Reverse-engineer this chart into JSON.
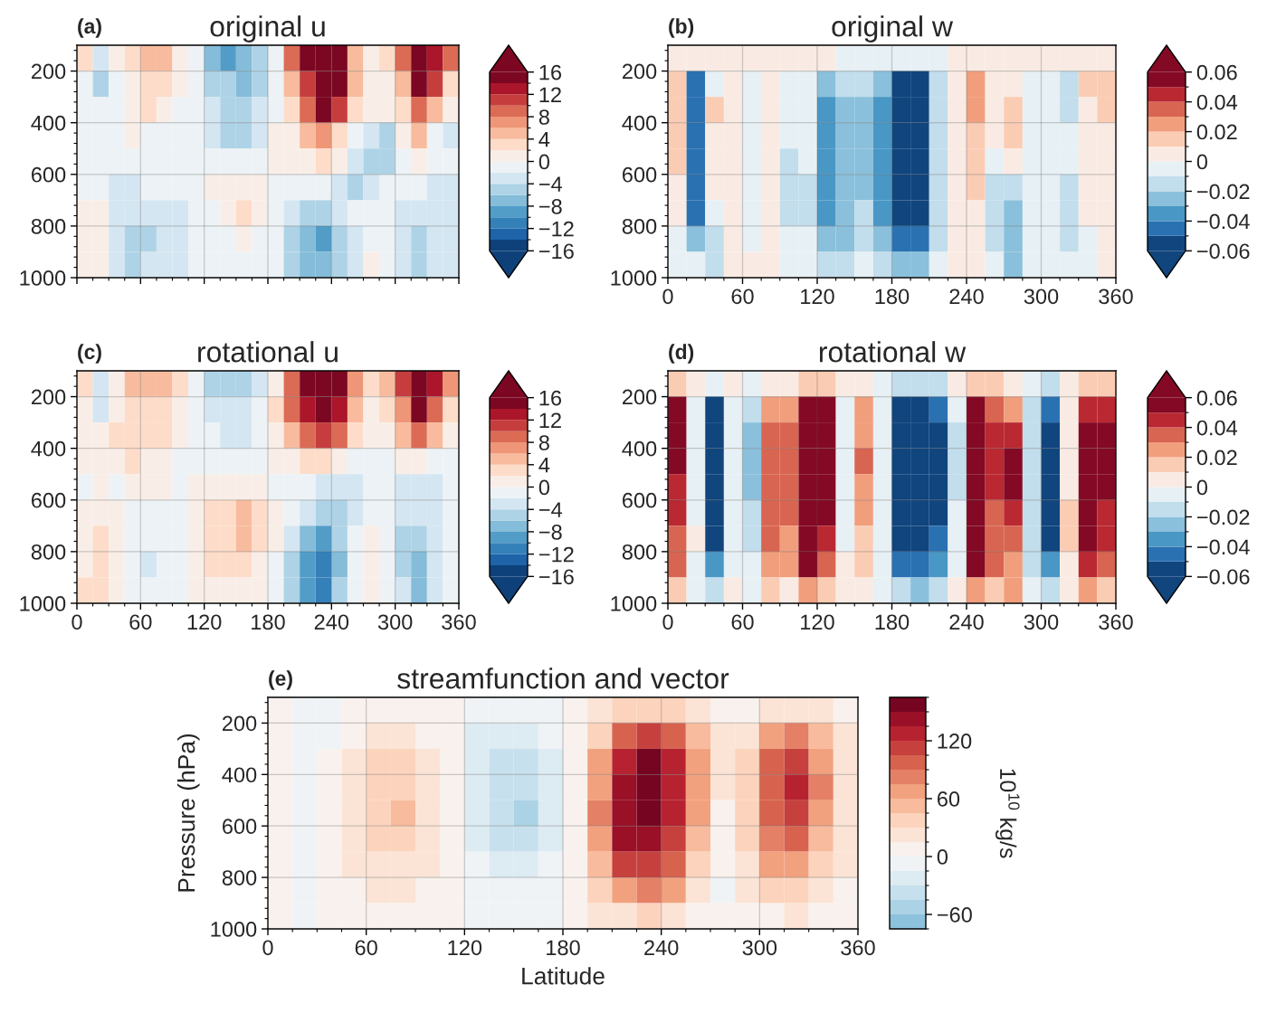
{
  "chart_data": [
    {
      "type": "heatmap",
      "title": "original u",
      "annotations": [
        "(a)"
      ],
      "tick_labels": "y",
      "grid": true,
      "x": [
        7.5,
        22.5,
        37.5,
        52.5,
        67.5,
        82.5,
        97.5,
        112.5,
        127.5,
        142.5,
        157.5,
        172.5,
        187.5,
        202.5,
        217.5,
        232.5,
        247.5,
        262.5,
        277.5,
        292.5,
        307.5,
        322.5,
        337.5,
        352.5
      ],
      "xlim": [
        0,
        360
      ],
      "ylim": [
        1000,
        100
      ],
      "xticks": [
        0,
        {
          "value": 15,
          "label": null
        },
        {
          "value": 30,
          "label": null
        },
        {
          "value": 45,
          "label": null
        },
        60,
        {
          "value": 75,
          "label": null
        },
        {
          "value": 90,
          "label": null
        },
        {
          "value": 105,
          "label": null
        },
        120,
        {
          "value": 135,
          "label": null
        },
        {
          "value": 150,
          "label": null
        },
        {
          "value": 165,
          "label": null
        },
        180,
        {
          "value": 195,
          "label": null
        },
        {
          "value": 210,
          "label": null
        },
        {
          "value": 225,
          "label": null
        },
        240,
        {
          "value": 255,
          "label": null
        },
        {
          "value": 270,
          "label": null
        },
        {
          "value": 285,
          "label": null
        },
        300,
        {
          "value": 315,
          "label": null
        },
        {
          "value": 330,
          "label": null
        },
        {
          "value": 345,
          "label": null
        },
        360
      ],
      "yticks": [
        {
          "value": 120,
          "label": null
        },
        {
          "value": 160,
          "label": null
        },
        200,
        {
          "value": 240,
          "label": null
        },
        {
          "value": 280,
          "label": null
        },
        {
          "value": 320,
          "label": null
        },
        {
          "value": 360,
          "label": null
        },
        400,
        {
          "value": 440,
          "label": null
        },
        {
          "value": 480,
          "label": null
        },
        {
          "value": 520,
          "label": null
        },
        {
          "value": 560,
          "label": null
        },
        600,
        {
          "value": 640,
          "label": null
        },
        {
          "value": 680,
          "label": null
        },
        {
          "value": 720,
          "label": null
        },
        {
          "value": 760,
          "label": null
        },
        800,
        {
          "value": 840,
          "label": null
        },
        {
          "value": 880,
          "label": null
        },
        {
          "value": 920,
          "label": null
        },
        {
          "value": 960,
          "label": null
        },
        1000
      ],
      "clim": [
        -16,
        16
      ],
      "cticks": [
        16,
        {
          "value": 14,
          "label": null
        },
        12,
        {
          "value": 10,
          "label": null
        },
        8,
        {
          "value": 6,
          "label": null
        },
        4,
        {
          "value": 2,
          "label": null
        },
        0,
        {
          "value": -2,
          "label": null
        },
        {
          "value": -4,
          "label": "−4"
        },
        {
          "value": -6,
          "label": null
        },
        {
          "value": -8,
          "label": "−8"
        },
        {
          "value": -10,
          "label": null
        },
        {
          "value": -12,
          "label": "−12"
        },
        {
          "value": -14,
          "label": null
        },
        {
          "value": -16,
          "label": "−16"
        }
      ],
      "cells": [
        [
          2,
          -3,
          0,
          2,
          5,
          4,
          1,
          -2,
          -8,
          -9,
          -8,
          -6,
          -2,
          8,
          14,
          16,
          14,
          4,
          1,
          3,
          9,
          16,
          13,
          8
        ],
        [
          -1,
          -6,
          -2,
          0,
          2,
          2,
          0,
          -1,
          -5,
          -6,
          -7,
          -5,
          -1,
          4,
          11,
          16,
          14,
          5,
          1,
          1,
          5,
          14,
          10,
          3
        ],
        [
          -1,
          -2,
          -1,
          1,
          2,
          1,
          -1,
          -2,
          -4,
          -6,
          -6,
          -4,
          -1,
          3,
          8,
          14,
          10,
          3,
          0,
          0,
          3,
          8,
          5,
          0
        ],
        [
          -1,
          -2,
          -1,
          0,
          -1,
          -1,
          -2,
          -2,
          -3,
          -5,
          -5,
          -3,
          0,
          1,
          4,
          6,
          3,
          -2,
          -4,
          -5,
          1,
          4,
          -2,
          -3
        ],
        [
          -2,
          -2,
          -2,
          -1,
          -2,
          -2,
          -2,
          -1,
          -1,
          -2,
          -2,
          -1,
          0,
          0,
          1,
          2,
          0,
          -3,
          -5,
          -5,
          -2,
          0,
          -2,
          -2
        ],
        [
          -1,
          -1,
          -3,
          -3,
          -2,
          -2,
          -2,
          -1,
          0,
          0,
          1,
          1,
          -1,
          -2,
          -2,
          -1,
          -3,
          -5,
          -4,
          -2,
          -2,
          -2,
          -3,
          -3
        ],
        [
          0,
          0,
          -4,
          -4,
          -3,
          -3,
          -3,
          -2,
          -1,
          0,
          2,
          0,
          -2,
          -3,
          -5,
          -5,
          -4,
          -2,
          -1,
          -2,
          -4,
          -4,
          -3,
          -3
        ],
        [
          0,
          1,
          -4,
          -5,
          -5,
          -4,
          -3,
          -2,
          -1,
          -1,
          0,
          -1,
          -2,
          -5,
          -8,
          -9,
          -6,
          -3,
          -1,
          -2,
          -4,
          -5,
          -4,
          -3
        ],
        [
          0,
          1,
          -3,
          -5,
          -4,
          -4,
          -3,
          -2,
          -1,
          -1,
          -1,
          -1,
          -2,
          -5,
          -8,
          -8,
          -5,
          -3,
          0,
          -2,
          -4,
          -5,
          -4,
          -3
        ]
      ]
    },
    {
      "type": "heatmap",
      "title": "original w",
      "annotations": [
        "(b)"
      ],
      "grid": true,
      "x": [
        7.5,
        22.5,
        37.5,
        52.5,
        67.5,
        82.5,
        97.5,
        112.5,
        127.5,
        142.5,
        157.5,
        172.5,
        187.5,
        202.5,
        217.5,
        232.5,
        247.5,
        262.5,
        277.5,
        292.5,
        307.5,
        322.5,
        337.5,
        352.5
      ],
      "xlim": [
        0,
        360
      ],
      "ylim": [
        1000,
        100
      ],
      "xticks": [
        0,
        {
          "value": 15,
          "label": null
        },
        {
          "value": 30,
          "label": null
        },
        {
          "value": 45,
          "label": null
        },
        60,
        {
          "value": 75,
          "label": null
        },
        {
          "value": 90,
          "label": null
        },
        {
          "value": 105,
          "label": null
        },
        120,
        {
          "value": 135,
          "label": null
        },
        {
          "value": 150,
          "label": null
        },
        {
          "value": 165,
          "label": null
        },
        180,
        {
          "value": 195,
          "label": null
        },
        {
          "value": 210,
          "label": null
        },
        {
          "value": 225,
          "label": null
        },
        240,
        {
          "value": 255,
          "label": null
        },
        {
          "value": 270,
          "label": null
        },
        {
          "value": 285,
          "label": null
        },
        300,
        {
          "value": 315,
          "label": null
        },
        {
          "value": 330,
          "label": null
        },
        {
          "value": 345,
          "label": null
        },
        360
      ],
      "yticks": [
        {
          "value": 120,
          "label": null
        },
        {
          "value": 160,
          "label": null
        },
        200,
        {
          "value": 240,
          "label": null
        },
        {
          "value": 280,
          "label": null
        },
        {
          "value": 320,
          "label": null
        },
        {
          "value": 360,
          "label": null
        },
        400,
        {
          "value": 440,
          "label": null
        },
        {
          "value": 480,
          "label": null
        },
        {
          "value": 520,
          "label": null
        },
        {
          "value": 560,
          "label": null
        },
        600,
        {
          "value": 640,
          "label": null
        },
        {
          "value": 680,
          "label": null
        },
        {
          "value": 720,
          "label": null
        },
        {
          "value": 760,
          "label": null
        },
        800,
        {
          "value": 840,
          "label": null
        },
        {
          "value": 880,
          "label": null
        },
        {
          "value": 920,
          "label": null
        },
        {
          "value": 960,
          "label": null
        },
        1000
      ],
      "clim": [
        -0.06,
        0.06
      ],
      "cticks": [
        0.06,
        {
          "value": 0.05,
          "label": null
        },
        0.04,
        {
          "value": 0.03,
          "label": null
        },
        0.02,
        {
          "value": 0.01,
          "label": null
        },
        0,
        {
          "value": -0.01,
          "label": null
        },
        {
          "value": -0.02,
          "label": "−0.02"
        },
        {
          "value": -0.03,
          "label": null
        },
        {
          "value": -0.04,
          "label": "−0.04"
        },
        {
          "value": -0.05,
          "label": null
        },
        {
          "value": -0.06,
          "label": "−0.06"
        }
      ],
      "cells": [
        [
          0.005,
          0,
          0,
          0,
          0,
          0,
          0,
          0,
          0,
          -0.005,
          -0.005,
          -0.01,
          -0.01,
          -0.01,
          -0.005,
          0,
          0.005,
          0,
          0,
          0,
          0,
          0,
          0,
          0
        ],
        [
          0.01,
          -0.05,
          -0.005,
          0.005,
          -0.005,
          0,
          -0.005,
          -0.005,
          -0.03,
          -0.02,
          -0.02,
          -0.03,
          -0.06,
          -0.06,
          -0.02,
          0.005,
          0.02,
          0,
          0.005,
          -0.005,
          -0.01,
          -0.015,
          0.01,
          0.01
        ],
        [
          0.015,
          -0.05,
          0.01,
          0.005,
          -0.01,
          0.005,
          -0.01,
          -0.01,
          -0.035,
          -0.025,
          -0.025,
          -0.035,
          -0.06,
          -0.06,
          -0.02,
          0.005,
          0.02,
          0,
          0.015,
          -0.005,
          -0.005,
          -0.015,
          0.005,
          0.01
        ],
        [
          0.015,
          -0.05,
          0.005,
          0.005,
          -0.005,
          0.005,
          -0.01,
          -0.01,
          -0.035,
          -0.03,
          -0.025,
          -0.035,
          -0.06,
          -0.06,
          -0.02,
          0.005,
          0.01,
          0,
          0.01,
          -0.005,
          -0.005,
          -0.01,
          0,
          0.005
        ],
        [
          0.01,
          -0.05,
          0,
          0,
          -0.005,
          0.005,
          -0.015,
          -0.01,
          -0.035,
          -0.03,
          -0.025,
          -0.035,
          -0.06,
          -0.06,
          -0.02,
          0.005,
          0.01,
          -0.01,
          0,
          -0.01,
          -0.005,
          -0.01,
          0,
          0
        ],
        [
          0.005,
          -0.05,
          0,
          0,
          -0.005,
          0.005,
          -0.015,
          -0.015,
          -0.035,
          -0.03,
          -0.025,
          -0.04,
          -0.06,
          -0.06,
          -0.02,
          0.005,
          0.015,
          -0.02,
          -0.02,
          -0.01,
          -0.01,
          -0.015,
          0,
          0
        ],
        [
          0,
          -0.05,
          -0.01,
          0,
          -0.005,
          0,
          -0.015,
          -0.015,
          -0.035,
          -0.03,
          -0.02,
          -0.04,
          -0.06,
          -0.06,
          -0.02,
          0,
          0.005,
          -0.02,
          -0.025,
          -0.01,
          -0.01,
          -0.015,
          0,
          0
        ],
        [
          -0.005,
          -0.03,
          -0.02,
          0,
          -0.005,
          0,
          -0.01,
          -0.01,
          -0.03,
          -0.025,
          -0.015,
          -0.03,
          -0.05,
          -0.05,
          -0.015,
          0,
          0,
          -0.015,
          -0.03,
          -0.01,
          -0.01,
          -0.015,
          -0.005,
          0
        ],
        [
          -0.005,
          -0.01,
          -0.02,
          0,
          0,
          0,
          -0.005,
          -0.005,
          -0.015,
          -0.015,
          -0.01,
          -0.015,
          -0.025,
          -0.025,
          -0.01,
          0,
          0,
          -0.005,
          -0.03,
          -0.005,
          -0.005,
          -0.01,
          -0.005,
          0
        ]
      ]
    },
    {
      "type": "heatmap",
      "title": "rotational u",
      "annotations": [
        "(c)"
      ],
      "grid": true,
      "x": [
        7.5,
        22.5,
        37.5,
        52.5,
        67.5,
        82.5,
        97.5,
        112.5,
        127.5,
        142.5,
        157.5,
        172.5,
        187.5,
        202.5,
        217.5,
        232.5,
        247.5,
        262.5,
        277.5,
        292.5,
        307.5,
        322.5,
        337.5,
        352.5
      ],
      "xlim": [
        0,
        360
      ],
      "ylim": [
        1000,
        100
      ],
      "xticks": [
        0,
        {
          "value": 15,
          "label": null
        },
        {
          "value": 30,
          "label": null
        },
        {
          "value": 45,
          "label": null
        },
        60,
        {
          "value": 75,
          "label": null
        },
        {
          "value": 90,
          "label": null
        },
        {
          "value": 105,
          "label": null
        },
        120,
        {
          "value": 135,
          "label": null
        },
        {
          "value": 150,
          "label": null
        },
        {
          "value": 165,
          "label": null
        },
        180,
        {
          "value": 195,
          "label": null
        },
        {
          "value": 210,
          "label": null
        },
        {
          "value": 225,
          "label": null
        },
        240,
        {
          "value": 255,
          "label": null
        },
        {
          "value": 270,
          "label": null
        },
        {
          "value": 285,
          "label": null
        },
        300,
        {
          "value": 315,
          "label": null
        },
        {
          "value": 330,
          "label": null
        },
        {
          "value": 345,
          "label": null
        },
        360
      ],
      "yticks": [
        {
          "value": 120,
          "label": null
        },
        {
          "value": 160,
          "label": null
        },
        200,
        {
          "value": 240,
          "label": null
        },
        {
          "value": 280,
          "label": null
        },
        {
          "value": 320,
          "label": null
        },
        {
          "value": 360,
          "label": null
        },
        400,
        {
          "value": 440,
          "label": null
        },
        {
          "value": 480,
          "label": null
        },
        {
          "value": 520,
          "label": null
        },
        {
          "value": 560,
          "label": null
        },
        600,
        {
          "value": 640,
          "label": null
        },
        {
          "value": 680,
          "label": null
        },
        {
          "value": 720,
          "label": null
        },
        {
          "value": 760,
          "label": null
        },
        800,
        {
          "value": 840,
          "label": null
        },
        {
          "value": 880,
          "label": null
        },
        {
          "value": 920,
          "label": null
        },
        {
          "value": 960,
          "label": null
        },
        1000
      ],
      "clim": [
        -16,
        16
      ],
      "cticks": [
        16,
        {
          "value": 14,
          "label": null
        },
        12,
        {
          "value": 10,
          "label": null
        },
        8,
        {
          "value": 6,
          "label": null
        },
        4,
        {
          "value": 2,
          "label": null
        },
        0,
        {
          "value": -2,
          "label": null
        },
        {
          "value": -4,
          "label": "−4"
        },
        {
          "value": -6,
          "label": null
        },
        {
          "value": -8,
          "label": "−8"
        },
        {
          "value": -10,
          "label": null
        },
        {
          "value": -12,
          "label": "−12"
        },
        {
          "value": -14,
          "label": null
        },
        {
          "value": -16,
          "label": "−16"
        }
      ],
      "cells": [
        [
          3,
          -3,
          0,
          4,
          5,
          4,
          2,
          -1,
          -5,
          -6,
          -5,
          -4,
          0,
          8,
          14,
          16,
          15,
          6,
          2,
          4,
          11,
          16,
          12,
          7
        ],
        [
          0,
          -4,
          1,
          3,
          3,
          2,
          0,
          -1,
          -3,
          -4,
          -4,
          -2,
          2,
          8,
          13,
          16,
          13,
          5,
          1,
          2,
          7,
          14,
          9,
          3
        ],
        [
          0,
          0,
          2,
          3,
          3,
          2,
          0,
          -1,
          -2,
          -3,
          -3,
          -2,
          1,
          5,
          9,
          11,
          8,
          3,
          1,
          1,
          4,
          8,
          4,
          1
        ],
        [
          0,
          1,
          1,
          2,
          1,
          0,
          -1,
          -1,
          -2,
          -2,
          -2,
          -1,
          0,
          1,
          2,
          2,
          0,
          -2,
          -2,
          -1,
          0,
          1,
          -1,
          -2
        ],
        [
          -1,
          0,
          -1,
          0,
          0,
          0,
          -1,
          0,
          1,
          1,
          1,
          0,
          -1,
          -1,
          -2,
          -3,
          -4,
          -4,
          -1,
          -1,
          -3,
          -3,
          -3,
          -1
        ],
        [
          0,
          1,
          0,
          -1,
          -1,
          -1,
          -1,
          1,
          2,
          3,
          4,
          3,
          0,
          -2,
          -4,
          -5,
          -5,
          -3,
          -1,
          -1,
          -3,
          -4,
          -3,
          -1
        ],
        [
          1,
          2,
          0,
          -2,
          -2,
          -2,
          -1,
          1,
          3,
          3,
          4,
          3,
          0,
          -3,
          -7,
          -9,
          -6,
          -2,
          0,
          -1,
          -5,
          -6,
          -3,
          -1
        ],
        [
          1,
          2,
          0,
          -2,
          -3,
          -2,
          -1,
          1,
          2,
          2,
          2,
          1,
          -1,
          -5,
          -10,
          -12,
          -8,
          -2,
          0,
          -1,
          -5,
          -8,
          -4,
          -1
        ],
        [
          2,
          2,
          0,
          -1,
          -2,
          -2,
          -1,
          1,
          1,
          1,
          1,
          1,
          -1,
          -5,
          -10,
          -11,
          -6,
          -1,
          1,
          -1,
          -4,
          -7,
          -3,
          -1
        ]
      ]
    },
    {
      "type": "heatmap",
      "title": "rotational w",
      "annotations": [
        "(d)"
      ],
      "grid": true,
      "x": [
        7.5,
        22.5,
        37.5,
        52.5,
        67.5,
        82.5,
        97.5,
        112.5,
        127.5,
        142.5,
        157.5,
        172.5,
        187.5,
        202.5,
        217.5,
        232.5,
        247.5,
        262.5,
        277.5,
        292.5,
        307.5,
        322.5,
        337.5,
        352.5
      ],
      "xlim": [
        0,
        360
      ],
      "ylim": [
        1000,
        100
      ],
      "xticks": [
        0,
        {
          "value": 15,
          "label": null
        },
        {
          "value": 30,
          "label": null
        },
        {
          "value": 45,
          "label": null
        },
        60,
        {
          "value": 75,
          "label": null
        },
        {
          "value": 90,
          "label": null
        },
        {
          "value": 105,
          "label": null
        },
        120,
        {
          "value": 135,
          "label": null
        },
        {
          "value": 150,
          "label": null
        },
        {
          "value": 165,
          "label": null
        },
        180,
        {
          "value": 195,
          "label": null
        },
        {
          "value": 210,
          "label": null
        },
        {
          "value": 225,
          "label": null
        },
        240,
        {
          "value": 255,
          "label": null
        },
        {
          "value": 270,
          "label": null
        },
        {
          "value": 285,
          "label": null
        },
        300,
        {
          "value": 315,
          "label": null
        },
        {
          "value": 330,
          "label": null
        },
        {
          "value": 345,
          "label": null
        },
        360
      ],
      "yticks": [
        {
          "value": 120,
          "label": null
        },
        {
          "value": 160,
          "label": null
        },
        200,
        {
          "value": 240,
          "label": null
        },
        {
          "value": 280,
          "label": null
        },
        {
          "value": 320,
          "label": null
        },
        {
          "value": 360,
          "label": null
        },
        400,
        {
          "value": 440,
          "label": null
        },
        {
          "value": 480,
          "label": null
        },
        {
          "value": 520,
          "label": null
        },
        {
          "value": 560,
          "label": null
        },
        600,
        {
          "value": 640,
          "label": null
        },
        {
          "value": 680,
          "label": null
        },
        {
          "value": 720,
          "label": null
        },
        {
          "value": 760,
          "label": null
        },
        800,
        {
          "value": 840,
          "label": null
        },
        {
          "value": 880,
          "label": null
        },
        {
          "value": 920,
          "label": null
        },
        {
          "value": 960,
          "label": null
        },
        1000
      ],
      "clim": [
        -0.06,
        0.06
      ],
      "cticks": [
        0.06,
        {
          "value": 0.05,
          "label": null
        },
        0.04,
        {
          "value": 0.03,
          "label": null
        },
        0.02,
        {
          "value": 0.01,
          "label": null
        },
        0,
        {
          "value": -0.01,
          "label": null
        },
        {
          "value": -0.02,
          "label": "−0.02"
        },
        {
          "value": -0.03,
          "label": null
        },
        {
          "value": -0.04,
          "label": "−0.04"
        },
        {
          "value": -0.05,
          "label": null
        },
        {
          "value": -0.06,
          "label": "−0.06"
        }
      ],
      "cells": [
        [
          0.015,
          0,
          -0.01,
          0,
          -0.005,
          0.005,
          0.005,
          0.01,
          0.01,
          0,
          0.005,
          -0.005,
          -0.015,
          -0.02,
          -0.015,
          0,
          0.015,
          0.01,
          0.005,
          -0.005,
          -0.015,
          0,
          0.01,
          0.01
        ],
        [
          0.06,
          -0.01,
          -0.06,
          -0.01,
          -0.02,
          0.02,
          0.02,
          0.06,
          0.05,
          -0.005,
          0.02,
          -0.01,
          -0.06,
          -0.06,
          -0.05,
          -0.01,
          0.05,
          0.03,
          0.02,
          -0.02,
          -0.05,
          0,
          0.04,
          0.04
        ],
        [
          0.06,
          -0.01,
          -0.06,
          -0.01,
          -0.03,
          0.03,
          0.03,
          0.06,
          0.06,
          -0.005,
          0.025,
          -0.01,
          -0.06,
          -0.06,
          -0.06,
          -0.015,
          0.06,
          0.04,
          0.04,
          -0.02,
          -0.06,
          0,
          0.06,
          0.05
        ],
        [
          0.05,
          -0.01,
          -0.06,
          -0.01,
          -0.03,
          0.03,
          0.03,
          0.06,
          0.06,
          -0.005,
          0.03,
          -0.01,
          -0.06,
          -0.06,
          -0.06,
          -0.015,
          0.06,
          0.04,
          0.05,
          -0.02,
          -0.06,
          0,
          0.06,
          0.06
        ],
        [
          0.04,
          -0.01,
          -0.06,
          -0.01,
          -0.025,
          0.03,
          0.03,
          0.06,
          0.05,
          -0.005,
          0.025,
          -0.01,
          -0.06,
          -0.06,
          -0.06,
          -0.015,
          0.06,
          0.04,
          0.05,
          -0.02,
          -0.06,
          0.005,
          0.06,
          0.05
        ],
        [
          0.04,
          -0.005,
          -0.06,
          -0.01,
          -0.02,
          0.03,
          0.03,
          0.06,
          0.05,
          -0.005,
          0.02,
          -0.01,
          -0.06,
          -0.06,
          -0.06,
          -0.01,
          0.06,
          0.035,
          0.04,
          -0.02,
          -0.06,
          0.01,
          0.06,
          0.04
        ],
        [
          0.035,
          0,
          -0.06,
          -0.005,
          -0.015,
          0.03,
          0.025,
          0.06,
          0.04,
          -0.005,
          0.015,
          -0.01,
          -0.06,
          -0.06,
          -0.05,
          -0.01,
          0.06,
          0.03,
          0.03,
          -0.02,
          -0.06,
          0.01,
          0.05,
          0.04
        ],
        [
          0.03,
          -0.005,
          -0.04,
          -0.005,
          -0.01,
          0.02,
          0.02,
          0.05,
          0.03,
          0,
          0.01,
          -0.01,
          -0.05,
          -0.05,
          -0.04,
          -0.005,
          0.06,
          0.03,
          0.025,
          -0.02,
          -0.04,
          0.005,
          0.04,
          0.03
        ],
        [
          0.01,
          -0.005,
          -0.015,
          0,
          -0.005,
          0.01,
          0.005,
          0.02,
          0.01,
          0,
          0.005,
          -0.005,
          -0.02,
          -0.025,
          -0.02,
          0,
          0.025,
          0.015,
          0.02,
          -0.01,
          -0.02,
          0,
          0.02,
          0.015
        ]
      ]
    },
    {
      "type": "heatmap",
      "title": "streamfunction and vector",
      "annotations": [
        "(e)"
      ],
      "grid": true,
      "xlabel": "Latitude",
      "ylabel": "Pressure (hPa)",
      "clabel": "10$^{10}$ kg/s",
      "x": [
        7.5,
        22.5,
        37.5,
        52.5,
        67.5,
        82.5,
        97.5,
        112.5,
        127.5,
        142.5,
        157.5,
        172.5,
        187.5,
        202.5,
        217.5,
        232.5,
        247.5,
        262.5,
        277.5,
        292.5,
        307.5,
        322.5,
        337.5,
        352.5
      ],
      "xlim": [
        0,
        360
      ],
      "ylim": [
        1000,
        100
      ],
      "xticks": [
        0,
        {
          "value": 15,
          "label": null
        },
        {
          "value": 30,
          "label": null
        },
        {
          "value": 45,
          "label": null
        },
        60,
        {
          "value": 75,
          "label": null
        },
        {
          "value": 90,
          "label": null
        },
        {
          "value": 105,
          "label": null
        },
        120,
        {
          "value": 135,
          "label": null
        },
        {
          "value": 150,
          "label": null
        },
        {
          "value": 165,
          "label": null
        },
        180,
        {
          "value": 195,
          "label": null
        },
        {
          "value": 210,
          "label": null
        },
        {
          "value": 225,
          "label": null
        },
        240,
        {
          "value": 255,
          "label": null
        },
        {
          "value": 270,
          "label": null
        },
        {
          "value": 285,
          "label": null
        },
        300,
        {
          "value": 315,
          "label": null
        },
        {
          "value": 330,
          "label": null
        },
        {
          "value": 345,
          "label": null
        },
        360
      ],
      "yticks": [
        {
          "value": 120,
          "label": null
        },
        {
          "value": 160,
          "label": null
        },
        200,
        {
          "value": 240,
          "label": null
        },
        {
          "value": 280,
          "label": null
        },
        {
          "value": 320,
          "label": null
        },
        {
          "value": 360,
          "label": null
        },
        400,
        {
          "value": 440,
          "label": null
        },
        {
          "value": 480,
          "label": null
        },
        {
          "value": 520,
          "label": null
        },
        {
          "value": 560,
          "label": null
        },
        600,
        {
          "value": 640,
          "label": null
        },
        {
          "value": 680,
          "label": null
        },
        {
          "value": 720,
          "label": null
        },
        {
          "value": 760,
          "label": null
        },
        800,
        {
          "value": 840,
          "label": null
        },
        {
          "value": 880,
          "label": null
        },
        {
          "value": 920,
          "label": null
        },
        {
          "value": 960,
          "label": null
        },
        1000
      ],
      "clim": [
        -75,
        165
      ],
      "cticks": [
        {
          "value": 165,
          "label": null
        },
        {
          "value": 150,
          "label": null
        },
        {
          "value": 135,
          "label": null
        },
        120,
        {
          "value": 105,
          "label": null
        },
        {
          "value": 90,
          "label": null
        },
        {
          "value": 75,
          "label": null
        },
        60,
        {
          "value": 45,
          "label": null
        },
        {
          "value": 30,
          "label": null
        },
        {
          "value": 15,
          "label": null
        },
        0,
        {
          "value": -15,
          "label": null
        },
        {
          "value": -30,
          "label": null
        },
        {
          "value": -45,
          "label": null
        },
        {
          "value": -60,
          "label": "−60"
        },
        {
          "value": -75,
          "label": null
        }
      ],
      "cells": [
        [
          5,
          -5,
          -5,
          5,
          10,
          10,
          5,
          0,
          -10,
          -10,
          -10,
          -5,
          0,
          15,
          30,
          40,
          35,
          20,
          10,
          10,
          20,
          25,
          20,
          10
        ],
        [
          5,
          -10,
          -5,
          10,
          20,
          20,
          10,
          0,
          -20,
          -25,
          -25,
          -15,
          0,
          40,
          90,
          110,
          90,
          50,
          15,
          20,
          60,
          80,
          50,
          20
        ],
        [
          0,
          -10,
          0,
          15,
          30,
          35,
          20,
          0,
          -25,
          -35,
          -35,
          -25,
          0,
          60,
          130,
          150,
          120,
          60,
          15,
          30,
          90,
          115,
          70,
          25
        ],
        [
          0,
          -10,
          0,
          20,
          40,
          40,
          25,
          0,
          -30,
          -40,
          -45,
          -30,
          0,
          70,
          145,
          160,
          130,
          65,
          15,
          35,
          100,
          120,
          75,
          25
        ],
        [
          0,
          -10,
          0,
          20,
          40,
          45,
          25,
          0,
          -30,
          -40,
          -55,
          -30,
          0,
          75,
          145,
          155,
          125,
          60,
          10,
          35,
          95,
          110,
          70,
          25
        ],
        [
          0,
          -10,
          0,
          20,
          35,
          35,
          20,
          0,
          -25,
          -35,
          -40,
          -25,
          0,
          70,
          135,
          135,
          110,
          50,
          10,
          30,
          80,
          90,
          55,
          20
        ],
        [
          0,
          -10,
          0,
          15,
          25,
          25,
          15,
          0,
          -15,
          -25,
          -25,
          -15,
          0,
          55,
          110,
          110,
          90,
          40,
          0,
          20,
          60,
          65,
          40,
          15
        ],
        [
          0,
          -5,
          0,
          10,
          15,
          15,
          10,
          0,
          -10,
          -15,
          -15,
          -10,
          0,
          35,
          70,
          75,
          60,
          25,
          -5,
          15,
          35,
          40,
          25,
          10
        ],
        [
          0,
          -5,
          0,
          5,
          5,
          5,
          5,
          0,
          -5,
          -5,
          -5,
          -5,
          0,
          15,
          25,
          30,
          25,
          10,
          0,
          5,
          10,
          15,
          10,
          5
        ]
      ]
    }
  ]
}
